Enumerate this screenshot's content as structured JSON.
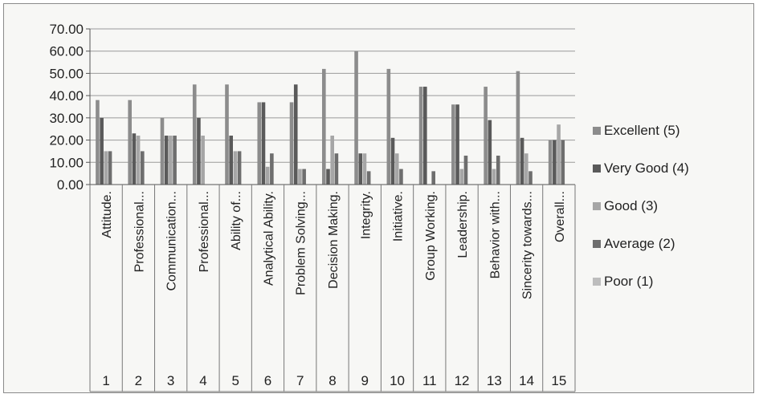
{
  "chart_data": {
    "type": "bar",
    "ylim": [
      0,
      70
    ],
    "yticks": [
      "70.00",
      "60.00",
      "50.00",
      "40.00",
      "30.00",
      "20.00",
      "10.00",
      "0.00"
    ],
    "grid": true,
    "legend_position": "right",
    "categories": [
      "Attitude.",
      "Professional...",
      "Communication...",
      "Professional...",
      "Ability of...",
      "Analytical Ability.",
      "Problem Solving...",
      "Decision Making.",
      "Integrity.",
      "Initiative.",
      "Group Working.",
      "Leadership.",
      "Behavior with...",
      "Sincerity towards...",
      "Overall..."
    ],
    "numbers": [
      "1",
      "2",
      "3",
      "4",
      "5",
      "6",
      "7",
      "8",
      "9",
      "10",
      "11",
      "12",
      "13",
      "14",
      "15"
    ],
    "series": [
      {
        "name": "Excellent (5)",
        "color": "#8c8c8c",
        "values": [
          38,
          38,
          30,
          45,
          45,
          37,
          37,
          52,
          60,
          52,
          44,
          36,
          44,
          51,
          20
        ]
      },
      {
        "name": "Very Good (4)",
        "color": "#5a5a5a",
        "values": [
          30,
          23,
          22,
          30,
          22,
          37,
          45,
          7,
          14,
          21,
          44,
          36,
          29,
          21,
          20
        ]
      },
      {
        "name": "Good  (3)",
        "color": "#a6a6a6",
        "values": [
          15,
          22,
          22,
          22,
          15,
          8,
          7,
          22,
          14,
          14,
          0,
          7,
          7,
          14,
          27
        ]
      },
      {
        "name": "Average (2)",
        "color": "#6e6e6e",
        "values": [
          15,
          15,
          22,
          0,
          15,
          14,
          7,
          14,
          6,
          7,
          6,
          13,
          13,
          6,
          20
        ]
      },
      {
        "name": "Poor  (1)",
        "color": "#bdbdbd",
        "values": [
          0,
          0,
          0,
          0,
          0,
          0,
          0,
          0,
          0,
          0,
          0,
          0,
          0,
          0,
          0
        ]
      }
    ]
  }
}
